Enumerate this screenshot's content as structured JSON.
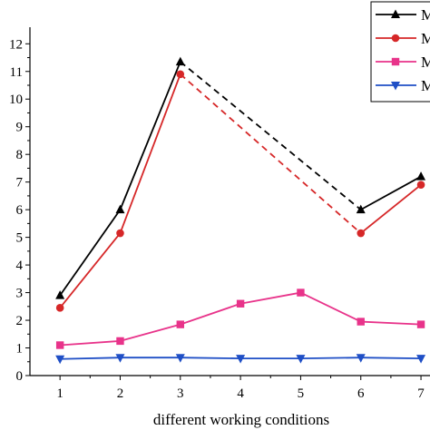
{
  "chart_data": {
    "type": "line",
    "title": "",
    "xlabel": "different working conditions",
    "ylabel": "",
    "x": [
      1,
      2,
      3,
      4,
      5,
      6,
      7
    ],
    "xlim": [
      0.5,
      7.15
    ],
    "ylim": [
      0,
      12.6
    ],
    "x_ticks": [
      "1",
      "2",
      "3",
      "4",
      "5",
      "6",
      "7"
    ],
    "y_ticks": [
      "0",
      "1",
      "2",
      "3",
      "4",
      "5",
      "6",
      "7",
      "8",
      "9",
      "10",
      "11",
      "12"
    ],
    "grid": false,
    "legend_position": "top-right",
    "series": [
      {
        "name": "M",
        "color": "#000000",
        "marker": "triangle-up",
        "values": [
          2.9,
          6.0,
          11.35,
          null,
          null,
          6.0,
          7.2
        ],
        "dashed_segment": [
          3,
          6
        ]
      },
      {
        "name": "M",
        "color": "#d62728",
        "marker": "circle",
        "values": [
          2.45,
          5.15,
          10.9,
          null,
          null,
          5.15,
          6.9
        ],
        "dashed_segment": [
          3,
          6
        ]
      },
      {
        "name": "M",
        "color": "#e8338a",
        "marker": "square",
        "values": [
          1.1,
          1.25,
          1.85,
          2.6,
          3.0,
          1.95,
          1.85
        ]
      },
      {
        "name": "M",
        "color": "#1f4fc6",
        "marker": "triangle-down",
        "values": [
          0.6,
          0.65,
          0.65,
          0.62,
          0.62,
          0.65,
          0.62
        ]
      }
    ]
  }
}
